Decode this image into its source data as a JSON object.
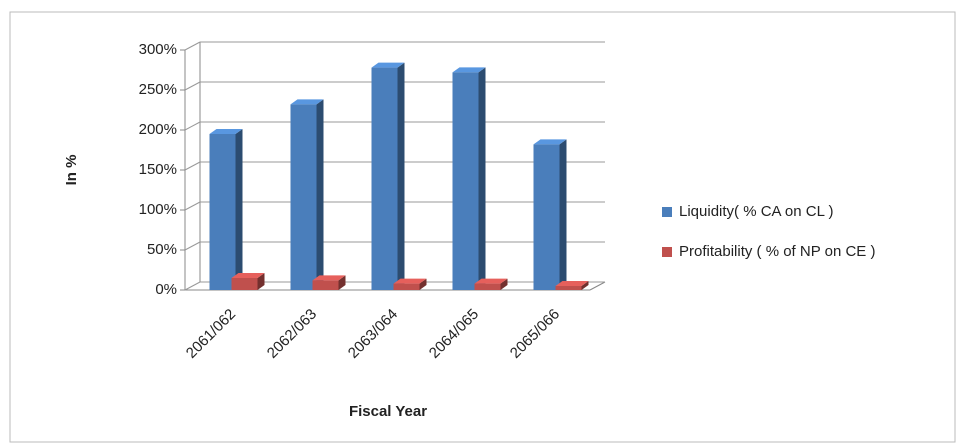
{
  "chart_data": {
    "type": "bar3d",
    "x_label": "Fiscal Year",
    "y_label": "In %",
    "categories": [
      "2061/062",
      "2062/063",
      "2063/064",
      "2064/065",
      "2065/066"
    ],
    "series": [
      {
        "name": "Liquidity( % CA on CL )",
        "color": "#4a7ebb",
        "values": [
          195,
          232,
          278,
          272,
          182
        ]
      },
      {
        "name": "Profitability ( % of NP on CE )",
        "color": "#c0504d",
        "values": [
          15,
          12,
          8,
          8,
          5
        ]
      }
    ],
    "ylim": [
      0,
      300
    ],
    "yticks": [
      {
        "value": 0,
        "label": "0%"
      },
      {
        "value": 50,
        "label": "50%"
      },
      {
        "value": 100,
        "label": "100%"
      },
      {
        "value": 150,
        "label": "150%"
      },
      {
        "value": 200,
        "label": "200%"
      },
      {
        "value": 250,
        "label": "250%"
      },
      {
        "value": 300,
        "label": "300%"
      }
    ],
    "grid": true,
    "legend": "right"
  }
}
